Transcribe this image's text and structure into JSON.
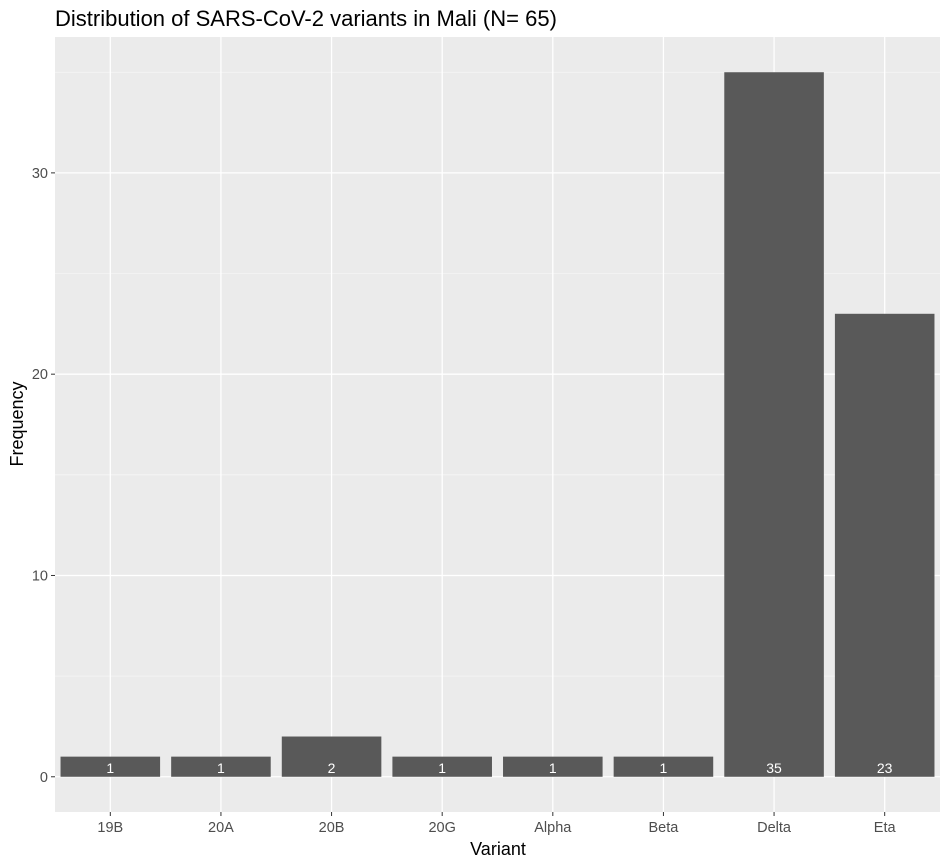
{
  "chart_data": {
    "type": "bar",
    "title": "Distribution of SARS-CoV-2 variants in Mali (N= 65)",
    "xlabel": "Variant",
    "ylabel": "Frequency",
    "categories": [
      "19B",
      "20A",
      "20B",
      "20G",
      "Alpha",
      "Beta",
      "Delta",
      "Eta"
    ],
    "values": [
      1,
      1,
      2,
      1,
      1,
      1,
      35,
      23
    ],
    "data_labels": [
      "1",
      "1",
      "2",
      "1",
      "1",
      "1",
      "35",
      "23"
    ],
    "yticks": [
      0,
      10,
      20,
      30
    ],
    "ytick_labels": [
      "0",
      "10",
      "20",
      "30"
    ],
    "ylim": [
      -1.75,
      36.75
    ],
    "grid": true,
    "legend": "none",
    "colors": {
      "bar": "#595959",
      "panel_background": "#ebebeb",
      "grid_major": "#ffffff",
      "grid_minor": "#f5f5f5",
      "data_label": "#ffffff",
      "tick_label": "#4d4d4d"
    }
  }
}
